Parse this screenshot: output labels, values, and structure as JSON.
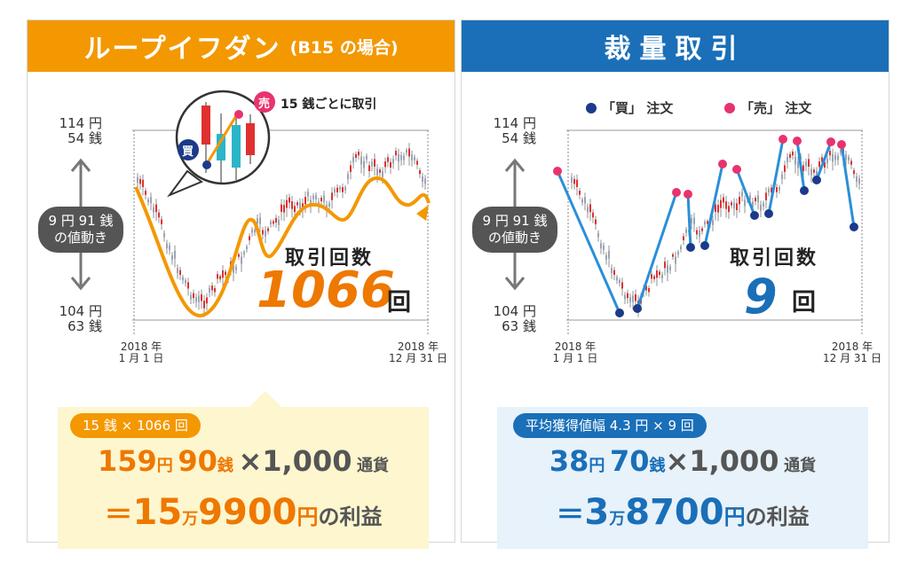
{
  "left": {
    "title": "ループイフダン",
    "subtitle": "(B15 の場合)",
    "note": "15 銭ごとに取引",
    "buy_label": "買",
    "sell_label": "売",
    "y_top_yen": "114 円",
    "y_top_sen": "54 銭",
    "y_bottom_yen": "104 円",
    "y_bottom_sen": "63 銭",
    "range_line1": "9 円 91 銭",
    "range_line2": "の値動き",
    "date_start_year": "2018 年",
    "date_start_day": "1 月 1 日",
    "date_end_year": "2018 年",
    "date_end_day": "12 月 31 日",
    "count_label": "取引回数",
    "count_value": "1066",
    "count_unit": "回",
    "result_tag": "15 銭 × 1066 回",
    "r_yen": "159",
    "r_yen_unit": "円",
    "r_sen": "90",
    "r_sen_unit": "銭",
    "r_times": "×",
    "r_amount": "1,000",
    "r_currency": "通貨",
    "r_eq": "＝",
    "r_man": "15",
    "r_man_unit": "万",
    "r_rest": "9900",
    "r_yen_unit2": "円",
    "r_tail": "の利益"
  },
  "right": {
    "title": "裁量取引",
    "legend_buy": "「買」 注文",
    "legend_sell": "「売」 注文",
    "y_top_yen": "114 円",
    "y_top_sen": "54 銭",
    "y_bottom_yen": "104 円",
    "y_bottom_sen": "63 銭",
    "range_line1": "9 円 91 銭",
    "range_line2": "の値動き",
    "date_start_year": "2018 年",
    "date_start_day": "1 月 1 日",
    "date_end_year": "2018 年",
    "date_end_day": "12 月 31 日",
    "count_label": "取引回数",
    "count_value": "9",
    "count_unit": "回",
    "result_tag": "平均獲得値幅 4.3 円 × 9 回",
    "r_yen": "38",
    "r_yen_unit": "円",
    "r_sen": "70",
    "r_sen_unit": "銭",
    "r_times": "×",
    "r_amount": "1,000",
    "r_currency": "通貨",
    "r_eq": "＝",
    "r_man": "3",
    "r_man_unit": "万",
    "r_rest": "8700",
    "r_yen_unit2": "円",
    "r_tail": "の利益"
  },
  "colors": {
    "orange": "#f39800",
    "orange_text": "#ee7800",
    "blue": "#1a6fb8",
    "buy_dot": "#1b3a8a",
    "sell_dot": "#e8336e",
    "gray_pill": "#555555"
  },
  "icons": [
    "up-down-arrow-icon",
    "trade-arrow-icon",
    "magnifier-callout-icon"
  ]
}
